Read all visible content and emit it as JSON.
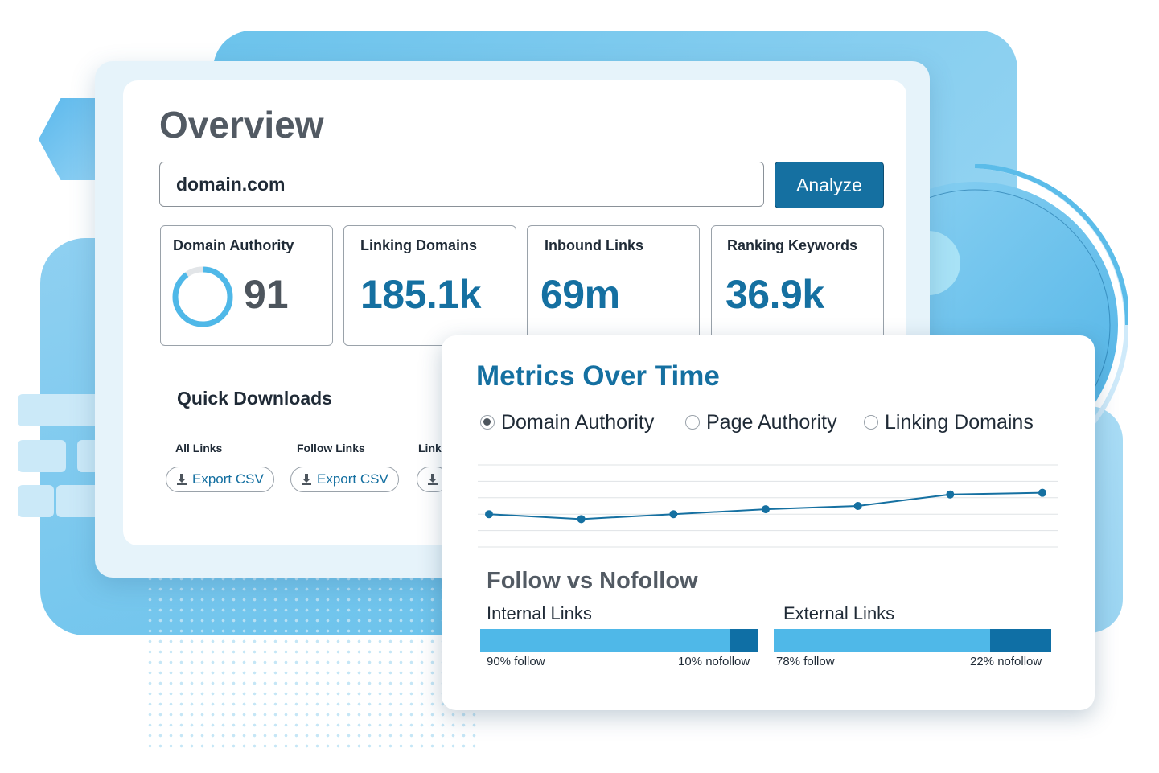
{
  "overview": {
    "title": "Overview",
    "domain_input_value": "domain.com",
    "analyze_label": "Analyze",
    "stats": [
      {
        "label": "Domain Authority",
        "value": "91",
        "ring_fraction": 0.9
      },
      {
        "label": "Linking Domains",
        "value": "185.1k"
      },
      {
        "label": "Inbound Links",
        "value": "69m"
      },
      {
        "label": "Ranking Keywords",
        "value": "36.9k"
      }
    ]
  },
  "quick_downloads": {
    "title": "Quick Downloads",
    "items": [
      {
        "label": "All Links",
        "button": "Export CSV"
      },
      {
        "label": "Follow Links",
        "button": "Export CSV"
      },
      {
        "label": "Link",
        "button": ""
      }
    ]
  },
  "metrics": {
    "title": "Metrics Over Time",
    "radios": [
      {
        "label": "Domain Authority",
        "selected": true
      },
      {
        "label": "Page Authority",
        "selected": false
      },
      {
        "label": "Linking Domains",
        "selected": false
      }
    ]
  },
  "chart_data": {
    "type": "line",
    "x": [
      1,
      2,
      3,
      4,
      5,
      6,
      7
    ],
    "series": [
      {
        "values": [
          2.0,
          1.7,
          2.0,
          2.3,
          2.5,
          3.2,
          3.3
        ]
      }
    ],
    "ylim": [
      0,
      5
    ],
    "grid": true,
    "color": "#1570a1"
  },
  "follow_vs_nofollow": {
    "title": "Follow vs Nofollow",
    "groups": [
      {
        "label": "Internal Links",
        "follow_pct": 90,
        "follow_text": "90% follow",
        "nofollow_text": "10% nofollow"
      },
      {
        "label": "External Links",
        "follow_pct": 78,
        "follow_text": "78% follow",
        "nofollow_text": "22% nofollow"
      }
    ],
    "colors": {
      "follow": "#4fb8e8",
      "nofollow": "#0f6fa5"
    }
  }
}
